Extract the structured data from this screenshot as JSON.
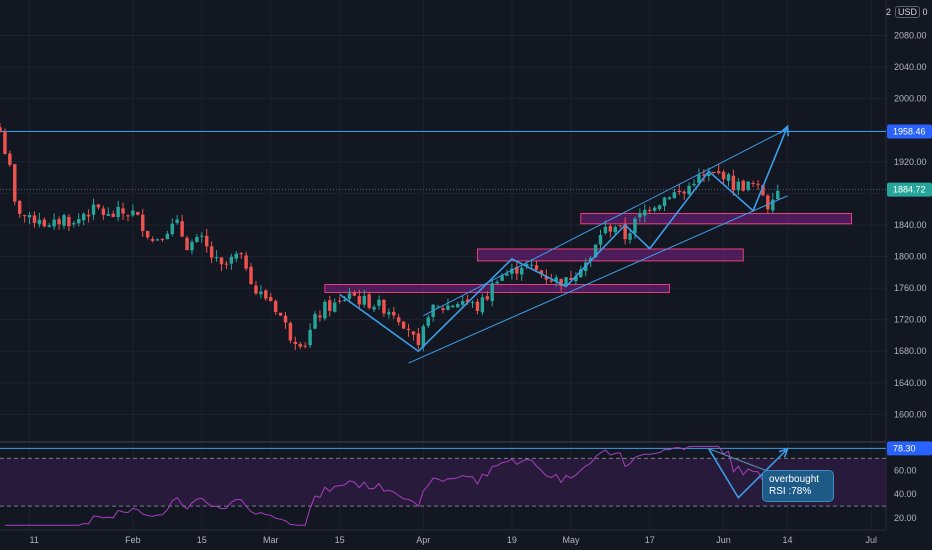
{
  "currency_label": "USD",
  "scale_prefix": "2",
  "scale_suffix": "0",
  "colors": {
    "background": "#131722",
    "up": "#26a69a",
    "down": "#ef5350",
    "trend": "#3b9ee8",
    "zone_border": "#e8417a",
    "zone_fill": "#7b1f86",
    "rsi_line": "#a73fbf",
    "rsi_band": "#2b1b3d",
    "price_tag": "#2962ff",
    "last_tag": "#26a69a"
  },
  "callout": {
    "line1": "overbought",
    "line2": "RSI :78%"
  },
  "chart_data": {
    "type": "candlestick",
    "grid": true,
    "legend": "none",
    "price_axis": {
      "ticks": [
        "2080.00",
        "2040.00",
        "2000.00",
        "1960.00",
        "1920.00",
        "1880.00",
        "1840.00",
        "1800.00",
        "1760.00",
        "1720.00",
        "1680.00",
        "1640.00",
        "1600.00"
      ],
      "ylim": [
        1565,
        2125
      ],
      "horizontal_line": 1958.46,
      "horizontal_line_label": "1958.46",
      "last_price": 1884.72,
      "last_price_label": "1884.72"
    },
    "time_axis": {
      "ticks": [
        "11",
        "Feb",
        "15",
        "Mar",
        "15",
        "Apr",
        "19",
        "May",
        "17",
        "Jun",
        "14",
        "Jul"
      ],
      "tick_dates": [
        "2021-01-11",
        "2021-02-01",
        "2021-02-15",
        "2021-03-01",
        "2021-03-15",
        "2021-04-01",
        "2021-04-19",
        "2021-05-01",
        "2021-05-17",
        "2021-06-01",
        "2021-06-14",
        "2021-07-01"
      ],
      "xlim": [
        "2021-01-05",
        "2021-07-04"
      ]
    },
    "anchors": [
      [
        "2021-01-05",
        1958
      ],
      [
        "2021-01-07",
        1910
      ],
      [
        "2021-01-08",
        1865
      ],
      [
        "2021-01-11",
        1845
      ],
      [
        "2021-01-13",
        1850
      ],
      [
        "2021-01-15",
        1835
      ],
      [
        "2021-01-18",
        1850
      ],
      [
        "2021-01-20",
        1840
      ],
      [
        "2021-01-22",
        1855
      ],
      [
        "2021-01-25",
        1860
      ],
      [
        "2021-01-27",
        1850
      ],
      [
        "2021-01-29",
        1855
      ],
      [
        "2021-02-01",
        1855
      ],
      [
        "2021-02-03",
        1840
      ],
      [
        "2021-02-05",
        1820
      ],
      [
        "2021-02-08",
        1835
      ],
      [
        "2021-02-10",
        1840
      ],
      [
        "2021-02-12",
        1815
      ],
      [
        "2021-02-15",
        1820
      ],
      [
        "2021-02-17",
        1800
      ],
      [
        "2021-02-19",
        1785
      ],
      [
        "2021-02-22",
        1800
      ],
      [
        "2021-02-24",
        1790
      ],
      [
        "2021-02-26",
        1755
      ],
      [
        "2021-03-01",
        1745
      ],
      [
        "2021-03-03",
        1725
      ],
      [
        "2021-03-05",
        1700
      ],
      [
        "2021-03-08",
        1690
      ],
      [
        "2021-03-10",
        1720
      ],
      [
        "2021-03-12",
        1735
      ],
      [
        "2021-03-15",
        1740
      ],
      [
        "2021-03-17",
        1755
      ],
      [
        "2021-03-19",
        1745
      ],
      [
        "2021-03-22",
        1740
      ],
      [
        "2021-03-24",
        1735
      ],
      [
        "2021-03-26",
        1730
      ],
      [
        "2021-03-29",
        1710
      ],
      [
        "2021-03-31",
        1680
      ],
      [
        "2021-04-02",
        1730
      ],
      [
        "2021-04-05",
        1735
      ],
      [
        "2021-04-07",
        1740
      ],
      [
        "2021-04-09",
        1745
      ],
      [
        "2021-04-12",
        1735
      ],
      [
        "2021-04-14",
        1750
      ],
      [
        "2021-04-16",
        1775
      ],
      [
        "2021-04-19",
        1780
      ],
      [
        "2021-04-21",
        1790
      ],
      [
        "2021-04-23",
        1785
      ],
      [
        "2021-04-26",
        1775
      ],
      [
        "2021-04-28",
        1770
      ],
      [
        "2021-04-30",
        1768
      ],
      [
        "2021-05-03",
        1790
      ],
      [
        "2021-05-05",
        1795
      ],
      [
        "2021-05-07",
        1830
      ],
      [
        "2021-05-10",
        1840
      ],
      [
        "2021-05-12",
        1825
      ],
      [
        "2021-05-14",
        1843
      ],
      [
        "2021-05-17",
        1865
      ],
      [
        "2021-05-19",
        1870
      ],
      [
        "2021-05-21",
        1880
      ],
      [
        "2021-05-24",
        1880
      ],
      [
        "2021-05-26",
        1898
      ],
      [
        "2021-05-28",
        1900
      ],
      [
        "2021-06-01",
        1905
      ],
      [
        "2021-06-03",
        1890
      ],
      [
        "2021-06-07",
        1890
      ],
      [
        "2021-06-09",
        1880
      ],
      [
        "2021-06-10",
        1865
      ],
      [
        "2021-06-11",
        1880
      ],
      [
        "2021-06-12",
        1884.72
      ]
    ],
    "trendlines": [
      {
        "name": "channel-upper",
        "points": [
          [
            "2021-04-01",
            1725
          ],
          [
            "2021-06-14",
            1962
          ]
        ]
      },
      {
        "name": "channel-lower",
        "points": [
          [
            "2021-03-29",
            1665
          ],
          [
            "2021-06-14",
            1877
          ]
        ]
      },
      {
        "name": "zigzag",
        "points": [
          [
            "2021-03-15",
            1752
          ],
          [
            "2021-03-31",
            1680
          ],
          [
            "2021-04-19",
            1797
          ],
          [
            "2021-04-30",
            1762
          ],
          [
            "2021-05-12",
            1840
          ],
          [
            "2021-05-17",
            1810
          ],
          [
            "2021-05-29",
            1908
          ],
          [
            "2021-06-07",
            1858
          ],
          [
            "2021-06-14",
            1965
          ]
        ]
      }
    ],
    "zones": [
      {
        "name": "zone-1",
        "from": "2021-03-12",
        "to": "2021-05-21",
        "low": 1757,
        "high": 1762
      },
      {
        "name": "zone-2",
        "from": "2021-04-12",
        "to": "2021-06-05",
        "low": 1797,
        "high": 1807
      },
      {
        "name": "zone-3",
        "from": "2021-05-03",
        "to": "2021-06-27",
        "low": 1844,
        "high": 1852
      }
    ],
    "rsi": {
      "ticks": [
        "60.00",
        "40.00",
        "20.00"
      ],
      "ylim": [
        10,
        82
      ],
      "upper_band": 70,
      "lower_band": 30,
      "overbought_line": 78.3,
      "overbought_label": "78.30",
      "zigzag": [
        [
          "2021-05-29",
          78
        ],
        [
          "2021-06-04",
          37
        ],
        [
          "2021-06-14",
          78
        ]
      ]
    }
  }
}
